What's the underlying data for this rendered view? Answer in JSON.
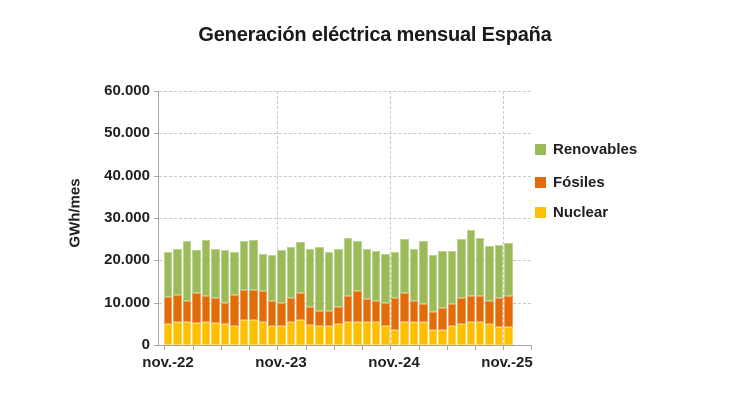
{
  "title": "Generación eléctrica mensual España",
  "legend": [
    {
      "label": "Renovables",
      "color": "#9BBB59"
    },
    {
      "label": "Fósiles",
      "color": "#E36C09"
    },
    {
      "label": "Nuclear",
      "color": "#FFC000"
    }
  ],
  "chart_data": {
    "type": "bar",
    "stacked": true,
    "title": "Generación eléctrica mensual España",
    "xlabel": "",
    "ylabel": "GWh/mes",
    "ylim": [
      0,
      60000
    ],
    "grid": "dashed horizontal every 10000, dashed vertical at each yearly november tick",
    "legend_position": "right",
    "y_ticks": [
      "60.000",
      "50.000",
      "40.000",
      "30.000",
      "20.000",
      "10.000",
      "0"
    ],
    "y_tick_values": [
      60000,
      50000,
      40000,
      30000,
      20000,
      10000,
      0
    ],
    "x_tick_labels": [
      "nov.-22",
      "nov.-23",
      "nov.-24",
      "nov.-25"
    ],
    "categories": [
      "nov.-22",
      "dic.-22",
      "ene.-23",
      "feb.-23",
      "mar.-23",
      "abr.-23",
      "may.-23",
      "jun.-23",
      "jul.-23",
      "ago.-23",
      "sep.-23",
      "oct.-23",
      "nov.-23",
      "dic.-23",
      "ene.-24",
      "feb.-24",
      "mar.-24",
      "abr.-24",
      "may.-24",
      "jun.-24",
      "jul.-24",
      "ago.-24",
      "sep.-24",
      "oct.-24",
      "nov.-24",
      "dic.-24",
      "ene.-25",
      "feb.-25",
      "mar.-25",
      "abr.-25",
      "may.-25",
      "jun.-25",
      "jul.-25",
      "ago.-25",
      "sep.-25",
      "oct.-25",
      "nov.-25"
    ],
    "series": [
      {
        "name": "Nuclear",
        "color": "#FFC000",
        "values": [
          5000,
          5400,
          5500,
          5200,
          5400,
          5300,
          4900,
          4600,
          5900,
          5900,
          5400,
          4400,
          4400,
          5400,
          5800,
          4800,
          4600,
          4600,
          5000,
          5400,
          5500,
          5500,
          5400,
          4400,
          3500,
          5500,
          5400,
          5400,
          3500,
          3500,
          4400,
          5000,
          5500,
          5400,
          5000,
          4200,
          4200
        ]
      },
      {
        "name": "Fósiles",
        "color": "#E36C09",
        "values": [
          6400,
          6500,
          4900,
          7100,
          6200,
          5900,
          5100,
          7300,
          7200,
          7200,
          7300,
          6000,
          5600,
          5800,
          6500,
          4100,
          3500,
          3500,
          3900,
          6200,
          7200,
          5300,
          5000,
          5600,
          7700,
          6800,
          5000,
          4200,
          4200,
          5300,
          5200,
          6200,
          6100,
          6200,
          5400,
          7000,
          7400
        ]
      },
      {
        "name": "Renovables",
        "color": "#9BBB59",
        "values": [
          10600,
          10800,
          14100,
          10200,
          13200,
          11400,
          12500,
          10100,
          11500,
          11700,
          8900,
          10800,
          12400,
          11900,
          12000,
          13800,
          15000,
          13800,
          13800,
          13800,
          11800,
          11900,
          11900,
          11600,
          10700,
          12700,
          12300,
          15000,
          13500,
          13500,
          12700,
          13800,
          15600,
          13800,
          13000,
          12500,
          12400
        ]
      }
    ]
  }
}
